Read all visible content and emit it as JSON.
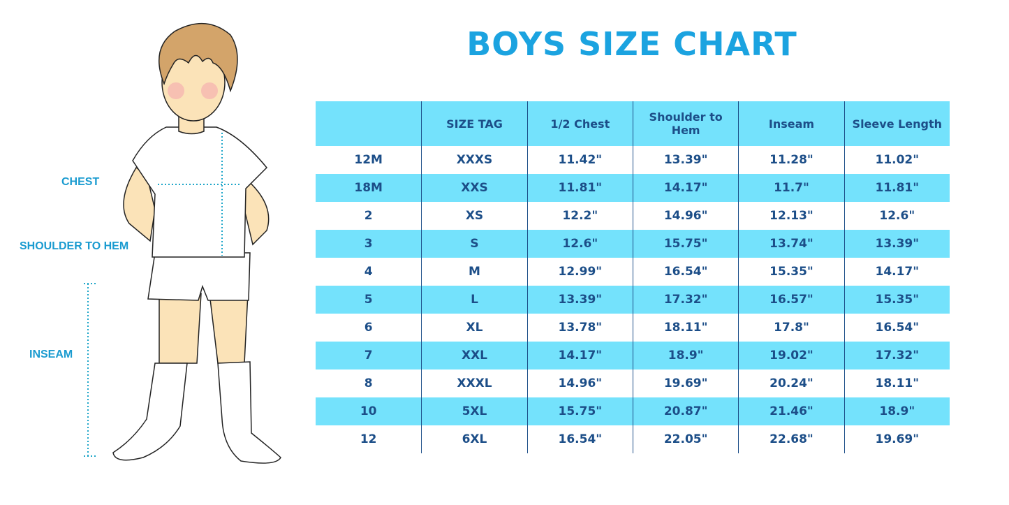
{
  "title": "BOYS SIZE CHART",
  "figure_labels": [
    "CHEST",
    "SHOULDER TO HEM",
    "INSEAM"
  ],
  "table": {
    "header": [
      "",
      "SIZE TAG",
      "1/2 Chest",
      "Shoulder to Hem",
      "Inseam",
      "Sleeve Length"
    ],
    "rows": [
      [
        "12M",
        "XXXS",
        "11.42\"",
        "13.39\"",
        "11.28\"",
        "11.02\""
      ],
      [
        "18M",
        "XXS",
        "11.81\"",
        "14.17\"",
        "11.7\"",
        "11.81\""
      ],
      [
        "2",
        "XS",
        "12.2\"",
        "14.96\"",
        "12.13\"",
        "12.6\""
      ],
      [
        "3",
        "S",
        "12.6\"",
        "15.75\"",
        "13.74\"",
        "13.39\""
      ],
      [
        "4",
        "M",
        "12.99\"",
        "16.54\"",
        "15.35\"",
        "14.17\""
      ],
      [
        "5",
        "L",
        "13.39\"",
        "17.32\"",
        "16.57\"",
        "15.35\""
      ],
      [
        "6",
        "XL",
        "13.78\"",
        "18.11\"",
        "17.8\"",
        "16.54\""
      ],
      [
        "7",
        "XXL",
        "14.17\"",
        "18.9\"",
        "19.02\"",
        "17.32\""
      ],
      [
        "8",
        "XXXL",
        "14.96\"",
        "19.69\"",
        "20.24\"",
        "18.11\""
      ],
      [
        "10",
        "5XL",
        "15.75\"",
        "20.87\"",
        "21.46\"",
        "18.9\""
      ],
      [
        "12",
        "6XL",
        "16.54\"",
        "22.05\"",
        "22.68\"",
        "19.69\""
      ]
    ]
  }
}
